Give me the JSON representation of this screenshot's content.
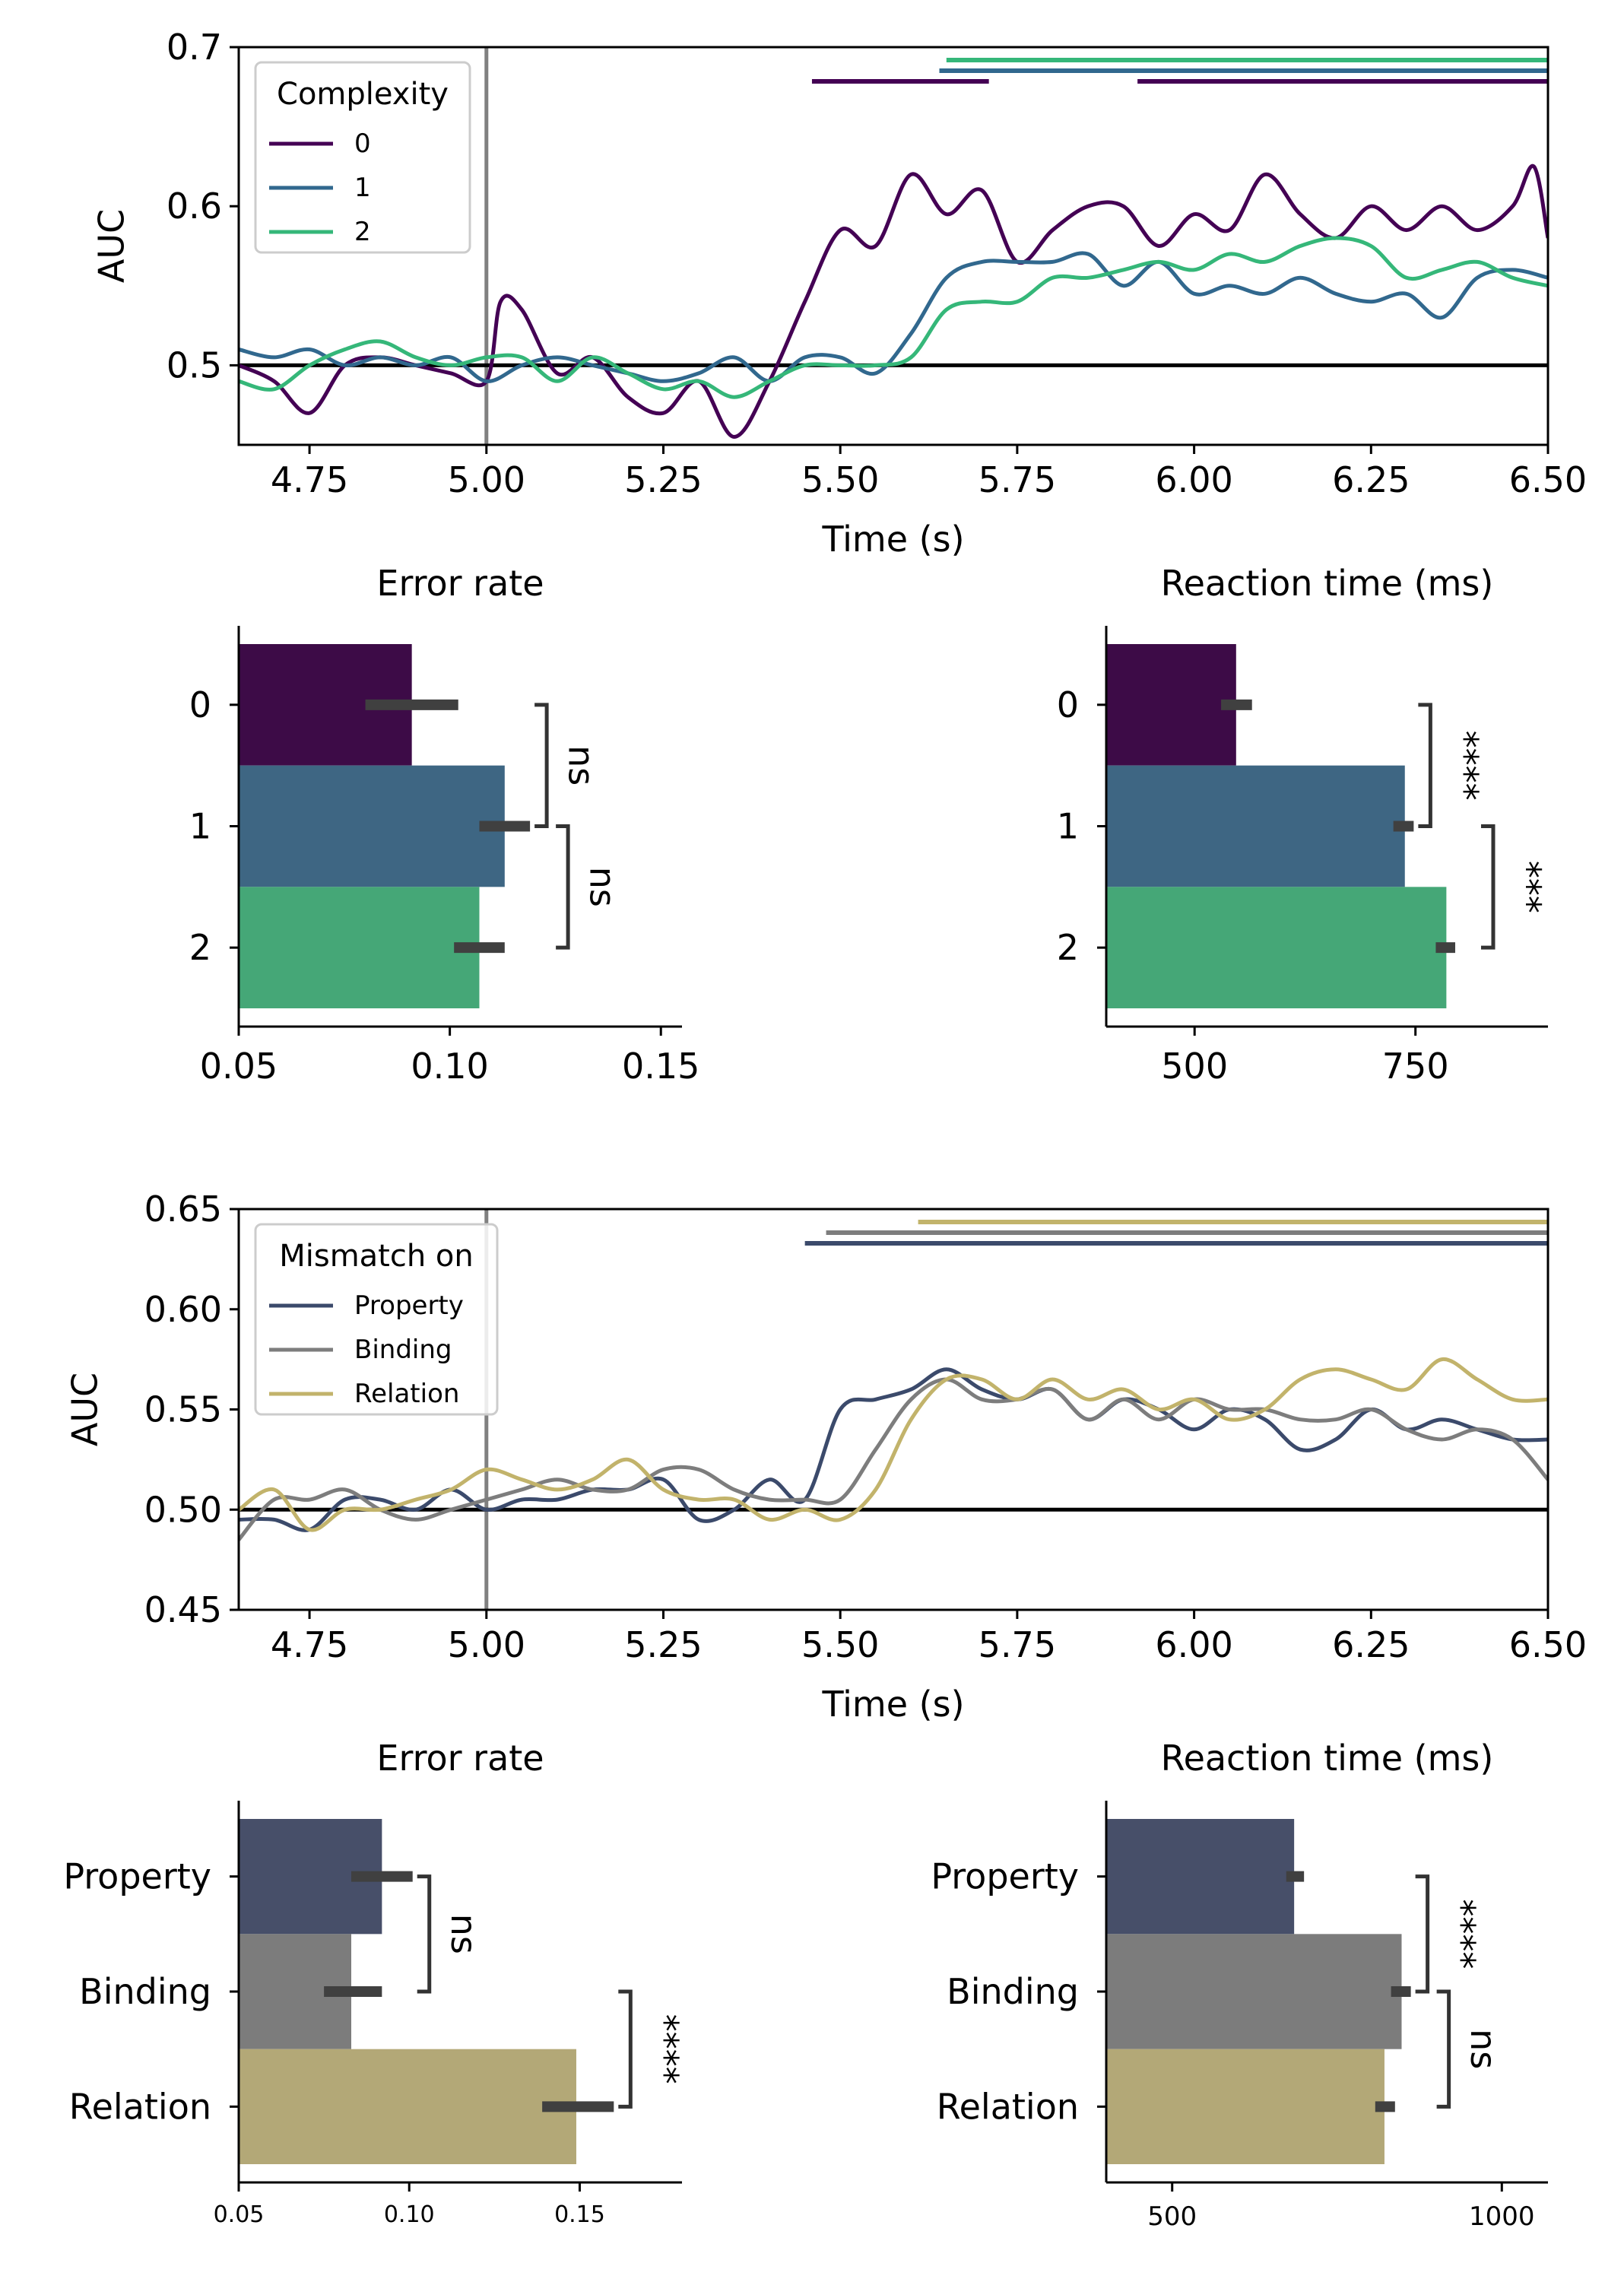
{
  "chart_data": [
    {
      "id": "auc-complexity",
      "type": "line",
      "xlabel": "Time (s)",
      "ylabel": "AUC",
      "xlim": [
        4.65,
        6.5
      ],
      "ylim": [
        0.45,
        0.7
      ],
      "xticks": [
        "4.75",
        "5.00",
        "5.25",
        "5.50",
        "5.75",
        "6.00",
        "6.25",
        "6.50"
      ],
      "yticks": [
        "0.5",
        "0.6",
        "0.7"
      ],
      "chance_level": 0.5,
      "stimulus_onset": 5.0,
      "legend": {
        "title": "Complexity",
        "placement": "top-left"
      },
      "series": [
        {
          "name": "0",
          "color": "#440154",
          "x": [
            4.65,
            4.7,
            4.75,
            4.8,
            4.85,
            4.9,
            4.95,
            5.0,
            5.02,
            5.05,
            5.1,
            5.15,
            5.2,
            5.25,
            5.3,
            5.35,
            5.4,
            5.45,
            5.5,
            5.55,
            5.6,
            5.65,
            5.7,
            5.75,
            5.8,
            5.85,
            5.9,
            5.95,
            6.0,
            6.05,
            6.1,
            6.15,
            6.2,
            6.25,
            6.3,
            6.35,
            6.4,
            6.45,
            6.48,
            6.5
          ],
          "y": [
            0.5,
            0.49,
            0.47,
            0.5,
            0.505,
            0.5,
            0.495,
            0.49,
            0.54,
            0.535,
            0.495,
            0.505,
            0.48,
            0.47,
            0.49,
            0.455,
            0.49,
            0.54,
            0.585,
            0.575,
            0.62,
            0.595,
            0.61,
            0.565,
            0.585,
            0.6,
            0.6,
            0.575,
            0.595,
            0.585,
            0.62,
            0.595,
            0.58,
            0.6,
            0.585,
            0.6,
            0.585,
            0.6,
            0.625,
            0.58
          ]
        },
        {
          "name": "1",
          "color": "#31688e",
          "x": [
            4.65,
            4.7,
            4.75,
            4.8,
            4.85,
            4.9,
            4.95,
            5.0,
            5.05,
            5.1,
            5.15,
            5.2,
            5.25,
            5.3,
            5.35,
            5.4,
            5.45,
            5.5,
            5.55,
            5.6,
            5.65,
            5.7,
            5.75,
            5.8,
            5.85,
            5.9,
            5.95,
            6.0,
            6.05,
            6.1,
            6.15,
            6.2,
            6.25,
            6.3,
            6.35,
            6.4,
            6.45,
            6.5
          ],
          "y": [
            0.51,
            0.505,
            0.51,
            0.5,
            0.505,
            0.5,
            0.505,
            0.49,
            0.5,
            0.505,
            0.5,
            0.495,
            0.49,
            0.495,
            0.505,
            0.49,
            0.505,
            0.505,
            0.495,
            0.52,
            0.555,
            0.565,
            0.565,
            0.565,
            0.57,
            0.55,
            0.565,
            0.545,
            0.55,
            0.545,
            0.555,
            0.545,
            0.54,
            0.545,
            0.53,
            0.555,
            0.56,
            0.555
          ]
        },
        {
          "name": "2",
          "color": "#35b779",
          "x": [
            4.65,
            4.7,
            4.75,
            4.8,
            4.85,
            4.9,
            4.95,
            5.0,
            5.05,
            5.1,
            5.15,
            5.2,
            5.25,
            5.3,
            5.35,
            5.4,
            5.45,
            5.5,
            5.55,
            5.6,
            5.65,
            5.7,
            5.75,
            5.8,
            5.85,
            5.9,
            5.95,
            6.0,
            6.05,
            6.1,
            6.15,
            6.2,
            6.25,
            6.3,
            6.35,
            6.4,
            6.45,
            6.5
          ],
          "y": [
            0.49,
            0.485,
            0.5,
            0.51,
            0.515,
            0.505,
            0.5,
            0.505,
            0.505,
            0.49,
            0.505,
            0.495,
            0.485,
            0.49,
            0.48,
            0.49,
            0.5,
            0.5,
            0.5,
            0.505,
            0.535,
            0.54,
            0.54,
            0.555,
            0.555,
            0.56,
            0.565,
            0.56,
            0.57,
            0.565,
            0.575,
            0.58,
            0.575,
            0.555,
            0.56,
            0.565,
            0.555,
            0.55
          ]
        }
      ],
      "significance_bars": [
        {
          "series": "2",
          "color": "#35b779",
          "spans": [
            [
              5.65,
              6.5
            ]
          ]
        },
        {
          "series": "1",
          "color": "#31688e",
          "spans": [
            [
              5.64,
              6.5
            ]
          ]
        },
        {
          "series": "0",
          "color": "#440154",
          "spans": [
            [
              5.46,
              5.71
            ],
            [
              5.92,
              6.5
            ]
          ]
        }
      ]
    },
    {
      "id": "err-complexity",
      "type": "bar",
      "orientation": "horizontal",
      "title": "Error rate",
      "xlim": [
        0.05,
        0.155
      ],
      "xticks": [
        "0.05",
        "0.10",
        "0.15"
      ],
      "categories": [
        "0",
        "1",
        "2"
      ],
      "colors": [
        "#3d0b47",
        "#3e6683",
        "#45a777"
      ],
      "values": [
        0.091,
        0.113,
        0.107
      ],
      "errors": [
        [
          0.08,
          0.102
        ],
        [
          0.107,
          0.119
        ],
        [
          0.101,
          0.113
        ]
      ],
      "brackets": [
        {
          "from": "0",
          "to": "1",
          "label": "ns"
        },
        {
          "from": "1",
          "to": "2",
          "label": "ns"
        }
      ]
    },
    {
      "id": "rt-complexity",
      "type": "bar",
      "orientation": "horizontal",
      "title": "Reaction time (ms)",
      "xlim": [
        400,
        900
      ],
      "xticks": [
        "500",
        "750"
      ],
      "categories": [
        "0",
        "1",
        "2"
      ],
      "colors": [
        "#3d0b47",
        "#3e6683",
        "#45a777"
      ],
      "values": [
        547,
        738,
        785
      ],
      "errors": [
        [
          530,
          565
        ],
        [
          725,
          748
        ],
        [
          773,
          795
        ]
      ],
      "brackets": [
        {
          "from": "0",
          "to": "1",
          "label": "****"
        },
        {
          "from": "1",
          "to": "2",
          "label": "***"
        }
      ]
    },
    {
      "id": "auc-mismatch",
      "type": "line",
      "xlabel": "Time (s)",
      "ylabel": "AUC",
      "xlim": [
        4.65,
        6.5
      ],
      "ylim": [
        0.45,
        0.65
      ],
      "xticks": [
        "4.75",
        "5.00",
        "5.25",
        "5.50",
        "5.75",
        "6.00",
        "6.25",
        "6.50"
      ],
      "yticks": [
        "0.45",
        "0.50",
        "0.55",
        "0.60",
        "0.65"
      ],
      "chance_level": 0.5,
      "stimulus_onset": 5.0,
      "legend": {
        "title": "Mismatch on",
        "placement": "top-left"
      },
      "series": [
        {
          "name": "Property",
          "color": "#3b4a6b",
          "x": [
            4.65,
            4.7,
            4.75,
            4.8,
            4.85,
            4.9,
            4.95,
            5.0,
            5.05,
            5.1,
            5.15,
            5.2,
            5.25,
            5.3,
            5.35,
            5.4,
            5.45,
            5.5,
            5.55,
            5.6,
            5.65,
            5.7,
            5.75,
            5.8,
            5.85,
            5.9,
            5.95,
            6.0,
            6.05,
            6.1,
            6.15,
            6.2,
            6.25,
            6.3,
            6.35,
            6.4,
            6.45,
            6.5
          ],
          "y": [
            0.495,
            0.495,
            0.49,
            0.505,
            0.505,
            0.5,
            0.51,
            0.5,
            0.505,
            0.505,
            0.51,
            0.51,
            0.515,
            0.495,
            0.5,
            0.515,
            0.505,
            0.55,
            0.555,
            0.56,
            0.57,
            0.56,
            0.555,
            0.56,
            0.545,
            0.555,
            0.55,
            0.54,
            0.55,
            0.545,
            0.53,
            0.535,
            0.55,
            0.54,
            0.545,
            0.54,
            0.535,
            0.535
          ]
        },
        {
          "name": "Binding",
          "color": "#7d7d7d",
          "x": [
            4.65,
            4.7,
            4.75,
            4.8,
            4.85,
            4.9,
            4.95,
            5.0,
            5.05,
            5.1,
            5.15,
            5.2,
            5.25,
            5.3,
            5.35,
            5.4,
            5.45,
            5.5,
            5.55,
            5.6,
            5.65,
            5.7,
            5.75,
            5.8,
            5.85,
            5.9,
            5.95,
            6.0,
            6.05,
            6.1,
            6.15,
            6.2,
            6.25,
            6.3,
            6.35,
            6.4,
            6.45,
            6.5
          ],
          "y": [
            0.485,
            0.505,
            0.505,
            0.51,
            0.5,
            0.495,
            0.5,
            0.505,
            0.51,
            0.515,
            0.51,
            0.51,
            0.52,
            0.52,
            0.51,
            0.505,
            0.505,
            0.505,
            0.53,
            0.555,
            0.565,
            0.555,
            0.555,
            0.56,
            0.545,
            0.555,
            0.545,
            0.555,
            0.55,
            0.55,
            0.545,
            0.545,
            0.55,
            0.54,
            0.535,
            0.54,
            0.535,
            0.515
          ]
        },
        {
          "name": "Relation",
          "color": "#c2b36b",
          "x": [
            4.65,
            4.7,
            4.75,
            4.8,
            4.85,
            4.9,
            4.95,
            5.0,
            5.05,
            5.1,
            5.15,
            5.2,
            5.25,
            5.3,
            5.35,
            5.4,
            5.45,
            5.5,
            5.55,
            5.6,
            5.65,
            5.7,
            5.75,
            5.8,
            5.85,
            5.9,
            5.95,
            6.0,
            6.05,
            6.1,
            6.15,
            6.2,
            6.25,
            6.3,
            6.35,
            6.4,
            6.45,
            6.5
          ],
          "y": [
            0.5,
            0.51,
            0.49,
            0.5,
            0.5,
            0.505,
            0.51,
            0.52,
            0.515,
            0.51,
            0.515,
            0.525,
            0.51,
            0.505,
            0.505,
            0.495,
            0.5,
            0.495,
            0.51,
            0.545,
            0.565,
            0.565,
            0.555,
            0.565,
            0.555,
            0.56,
            0.55,
            0.555,
            0.545,
            0.55,
            0.565,
            0.57,
            0.565,
            0.56,
            0.575,
            0.565,
            0.555,
            0.555
          ]
        }
      ],
      "significance_bars": [
        {
          "series": "Relation",
          "color": "#c2b36b",
          "spans": [
            [
              5.61,
              6.5
            ]
          ]
        },
        {
          "series": "Binding",
          "color": "#7d7d7d",
          "spans": [
            [
              5.48,
              6.5
            ]
          ]
        },
        {
          "series": "Property",
          "color": "#3b4a6b",
          "spans": [
            [
              5.45,
              6.5
            ]
          ]
        }
      ]
    },
    {
      "id": "err-mismatch",
      "type": "bar",
      "orientation": "horizontal",
      "title": "Error rate",
      "xlim": [
        0.05,
        0.18
      ],
      "xticks": [
        "0.05",
        "0.10",
        "0.15"
      ],
      "categories": [
        "Property",
        "Binding",
        "Relation"
      ],
      "colors": [
        "#474f69",
        "#7c7c7c",
        "#b3a877"
      ],
      "values": [
        0.092,
        0.083,
        0.149
      ],
      "errors": [
        [
          0.083,
          0.101
        ],
        [
          0.075,
          0.092
        ],
        [
          0.139,
          0.16
        ]
      ],
      "brackets": [
        {
          "from": "Property",
          "to": "Binding",
          "label": "ns"
        },
        {
          "from": "Binding",
          "to": "Relation",
          "label": "****"
        }
      ]
    },
    {
      "id": "rt-mismatch",
      "type": "bar",
      "orientation": "horizontal",
      "title": "Reaction time (ms)",
      "xlim": [
        400,
        1070
      ],
      "xticks": [
        "500",
        "1000"
      ],
      "categories": [
        "Property",
        "Binding",
        "Relation"
      ],
      "colors": [
        "#474f69",
        "#7c7c7c",
        "#b3a877"
      ],
      "values": [
        685,
        848,
        822
      ],
      "errors": [
        [
          673,
          700
        ],
        [
          832,
          862
        ],
        [
          808,
          838
        ]
      ],
      "brackets": [
        {
          "from": "Property",
          "to": "Binding",
          "label": "****"
        },
        {
          "from": "Binding",
          "to": "Relation",
          "label": "ns"
        }
      ]
    }
  ]
}
